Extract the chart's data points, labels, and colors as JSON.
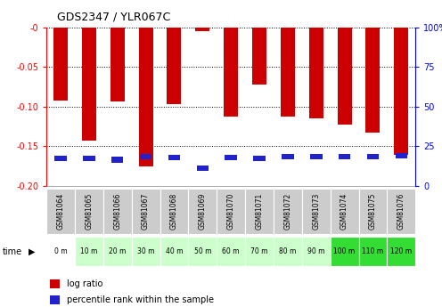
{
  "title": "GDS2347 / YLR067C",
  "samples": [
    "GSM81064",
    "GSM81065",
    "GSM81066",
    "GSM81067",
    "GSM81068",
    "GSM81069",
    "GSM81070",
    "GSM81071",
    "GSM81072",
    "GSM81073",
    "GSM81074",
    "GSM81075",
    "GSM81076"
  ],
  "time_labels": [
    "0 m",
    "10 m",
    "20 m",
    "30 m",
    "40 m",
    "50 m",
    "60 m",
    "70 m",
    "80 m",
    "90 m",
    "100 m",
    "110 m",
    "120 m"
  ],
  "log_ratio": [
    -0.092,
    -0.143,
    -0.093,
    -0.175,
    -0.097,
    -0.005,
    -0.112,
    -0.072,
    -0.112,
    -0.115,
    -0.123,
    -0.133,
    -0.161
  ],
  "percentile_rank_pct": [
    17.5,
    17.5,
    16.5,
    18.5,
    17.8,
    11.3,
    17.8,
    17.5,
    18.2,
    18.2,
    18.5,
    18.5,
    19.0
  ],
  "bar_color": "#cc0000",
  "blue_color": "#2222cc",
  "ylim_left": [
    -0.2,
    0.0
  ],
  "ylim_right": [
    0,
    100
  ],
  "yticks_left": [
    0.0,
    -0.05,
    -0.1,
    -0.15,
    -0.2
  ],
  "yticks_right": [
    0,
    25,
    50,
    75,
    100
  ],
  "time_bg_colors": [
    "#ffffff",
    "#ccffcc",
    "#ccffcc",
    "#ccffcc",
    "#ccffcc",
    "#ccffcc",
    "#ccffcc",
    "#ccffcc",
    "#ccffcc",
    "#ccffcc",
    "#33dd33",
    "#33dd33",
    "#33dd33"
  ],
  "sample_bg_color": "#cccccc",
  "fig_bg": "#ffffff",
  "bar_width": 0.5
}
